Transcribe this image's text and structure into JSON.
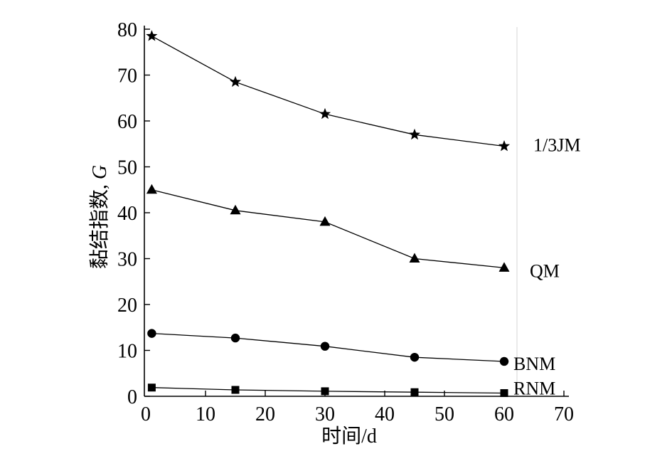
{
  "chart_data": {
    "type": "line",
    "xlabel": "时间/d",
    "ylabel": "黏结指数, G",
    "xlim": [
      0,
      70
    ],
    "ylim": [
      0,
      80
    ],
    "xticks": [
      0,
      10,
      20,
      30,
      40,
      50,
      60,
      70
    ],
    "yticks": [
      0,
      10,
      20,
      30,
      40,
      50,
      60,
      70,
      80
    ],
    "grid": false,
    "legend": "right",
    "series": [
      {
        "name": "1/3JM",
        "marker": "star",
        "color": "#000000",
        "x": [
          1,
          15,
          30,
          45,
          60
        ],
        "y": [
          78.5,
          68.5,
          61.5,
          57,
          54.5
        ]
      },
      {
        "name": "QM",
        "marker": "triangle",
        "color": "#000000",
        "x": [
          1,
          15,
          30,
          45,
          60
        ],
        "y": [
          45,
          40.5,
          38,
          30,
          28
        ]
      },
      {
        "name": "BNM",
        "marker": "circle",
        "color": "#000000",
        "x": [
          1,
          15,
          30,
          45,
          60
        ],
        "y": [
          13.7,
          12.7,
          10.9,
          8.5,
          7.6
        ]
      },
      {
        "name": "RNM",
        "marker": "square",
        "color": "#000000",
        "x": [
          1,
          15,
          30,
          45,
          60
        ],
        "y": [
          1.9,
          1.4,
          1.1,
          0.9,
          0.7
        ]
      }
    ]
  }
}
